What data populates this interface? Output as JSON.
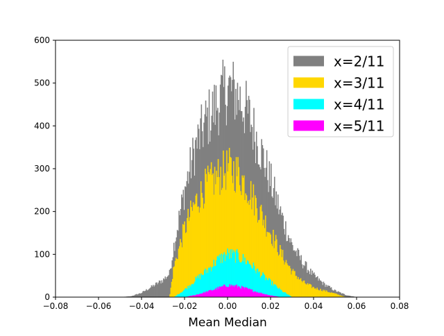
{
  "chart_data": {
    "type": "bar",
    "subtype": "overlaid-histogram",
    "xlabel": "Mean Median",
    "ylabel": "",
    "xlim": [
      -0.08,
      0.08
    ],
    "ylim": [
      0,
      600
    ],
    "xticks": [
      "−0.08",
      "−0.06",
      "−0.04",
      "−0.02",
      "0.00",
      "0.02",
      "0.04",
      "0.06",
      "0.08"
    ],
    "yticks": [
      "0",
      "100",
      "200",
      "300",
      "400",
      "500",
      "600"
    ],
    "grid": false,
    "legend_position": "top-right",
    "bin_width": 0.0004,
    "series": [
      {
        "name": "x=2/11",
        "color": "#808080",
        "range": [
          -0.05,
          0.06
        ],
        "profile": [
          [
            -0.05,
            0
          ],
          [
            -0.045,
            2
          ],
          [
            -0.04,
            10
          ],
          [
            -0.035,
            25
          ],
          [
            -0.03,
            40
          ],
          [
            -0.027,
            55
          ],
          [
            -0.025,
            120
          ],
          [
            -0.02,
            250
          ],
          [
            -0.015,
            350
          ],
          [
            -0.01,
            410
          ],
          [
            -0.005,
            450
          ],
          [
            0.0,
            490
          ],
          [
            0.005,
            470
          ],
          [
            0.01,
            420
          ],
          [
            0.015,
            350
          ],
          [
            0.02,
            270
          ],
          [
            0.025,
            190
          ],
          [
            0.03,
            120
          ],
          [
            0.035,
            80
          ],
          [
            0.04,
            50
          ],
          [
            0.045,
            30
          ],
          [
            0.05,
            15
          ],
          [
            0.055,
            5
          ],
          [
            0.06,
            0
          ]
        ]
      },
      {
        "name": "x=3/11",
        "color": "#FFD700",
        "range": [
          -0.027,
          0.055
        ],
        "profile": [
          [
            -0.027,
            0
          ],
          [
            -0.025,
            70
          ],
          [
            -0.02,
            160
          ],
          [
            -0.015,
            220
          ],
          [
            -0.01,
            260
          ],
          [
            -0.005,
            280
          ],
          [
            0.0,
            300
          ],
          [
            0.005,
            290
          ],
          [
            0.01,
            250
          ],
          [
            0.015,
            200
          ],
          [
            0.02,
            150
          ],
          [
            0.025,
            100
          ],
          [
            0.03,
            60
          ],
          [
            0.035,
            35
          ],
          [
            0.04,
            22
          ],
          [
            0.045,
            15
          ],
          [
            0.05,
            8
          ],
          [
            0.055,
            0
          ]
        ]
      },
      {
        "name": "x=4/11",
        "color": "#00FFFF",
        "range": [
          -0.025,
          0.03
        ],
        "profile": [
          [
            -0.025,
            0
          ],
          [
            -0.022,
            10
          ],
          [
            -0.018,
            25
          ],
          [
            -0.015,
            40
          ],
          [
            -0.01,
            60
          ],
          [
            -0.005,
            85
          ],
          [
            0.0,
            100
          ],
          [
            0.005,
            95
          ],
          [
            0.01,
            80
          ],
          [
            0.015,
            55
          ],
          [
            0.02,
            35
          ],
          [
            0.025,
            15
          ],
          [
            0.03,
            0
          ]
        ]
      },
      {
        "name": "x=5/11",
        "color": "#FF00FF",
        "range": [
          -0.02,
          0.025
        ],
        "profile": [
          [
            -0.02,
            0
          ],
          [
            -0.015,
            5
          ],
          [
            -0.01,
            12
          ],
          [
            -0.005,
            20
          ],
          [
            0.0,
            28
          ],
          [
            0.005,
            25
          ],
          [
            0.01,
            18
          ],
          [
            0.015,
            10
          ],
          [
            0.02,
            4
          ],
          [
            0.025,
            0
          ]
        ]
      }
    ]
  }
}
